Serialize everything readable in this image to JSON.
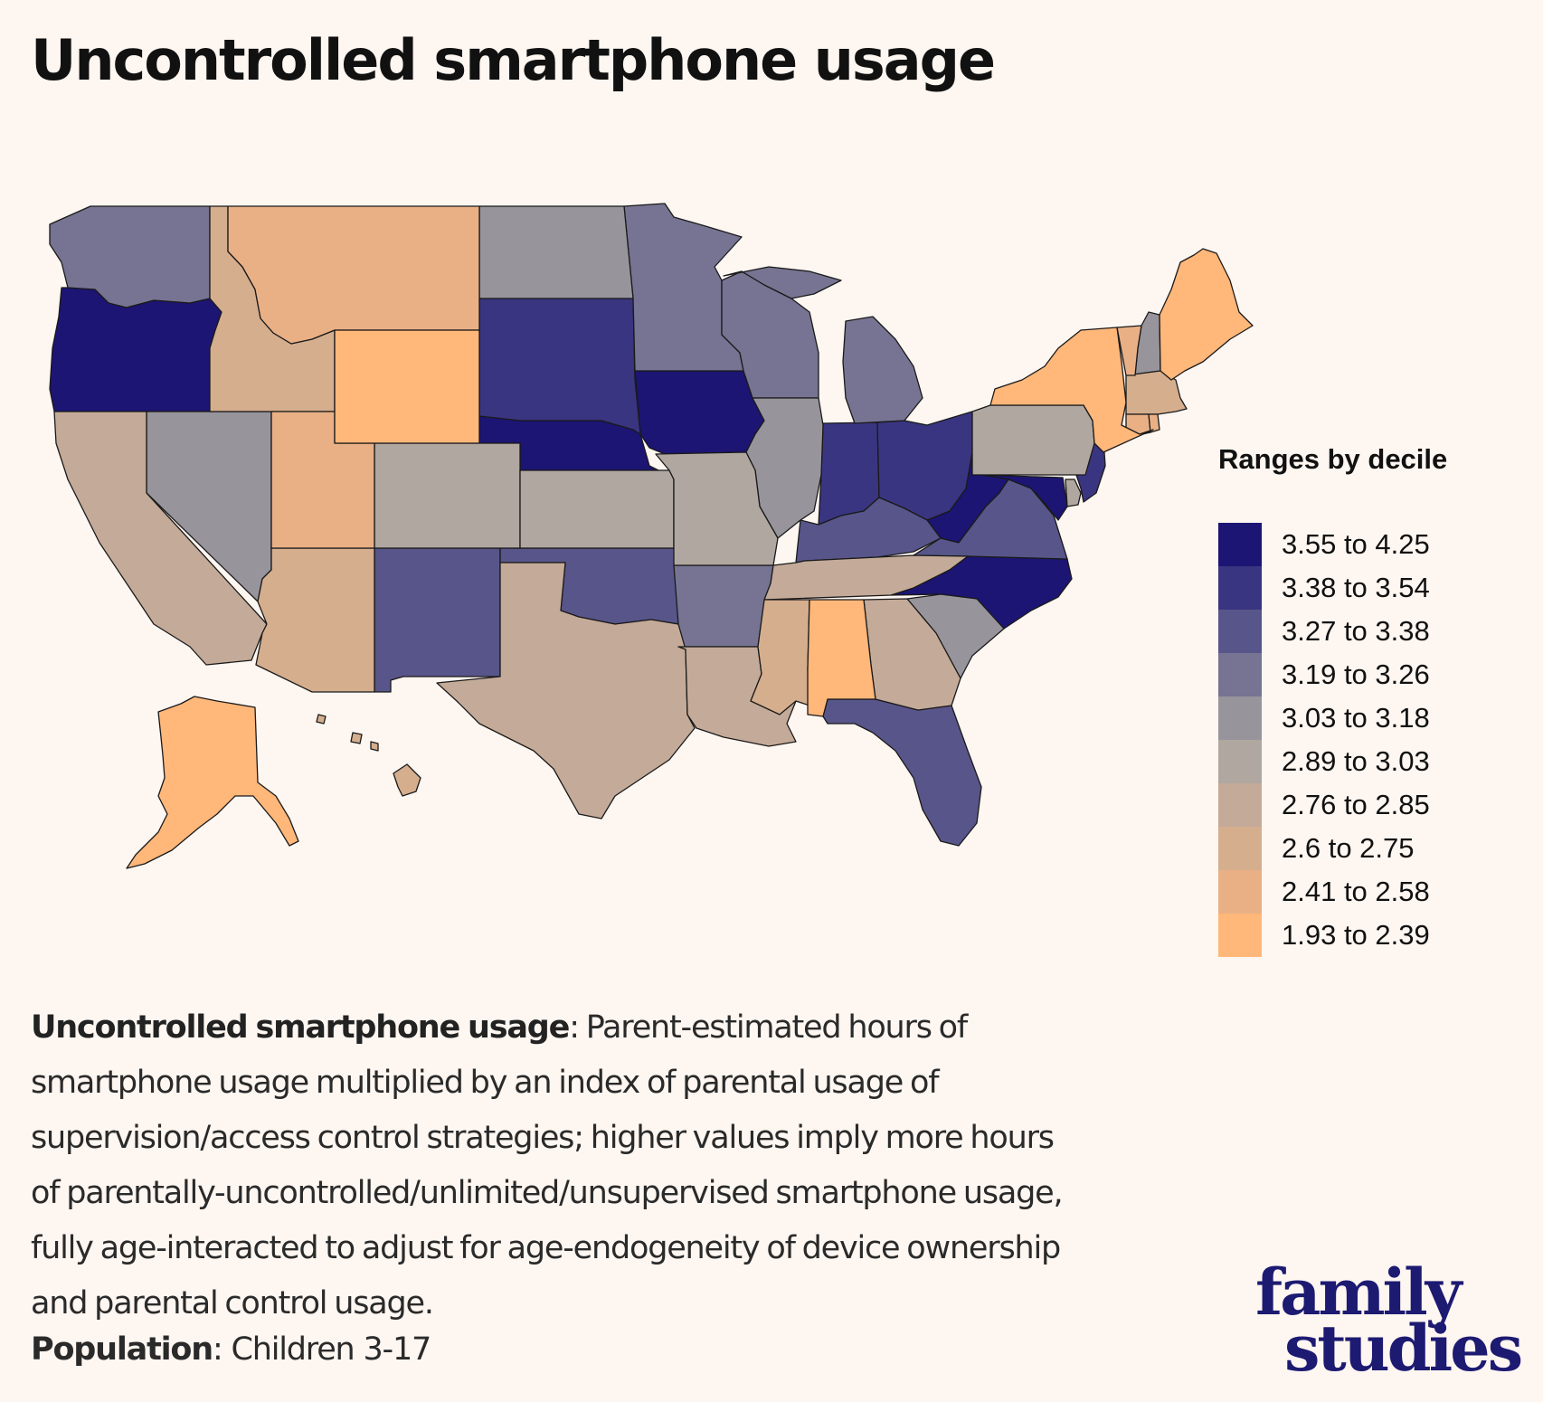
{
  "header": {
    "title": "Uncontrolled smartphone usage"
  },
  "legend": {
    "title": "Ranges by decile",
    "items": [
      {
        "label": "3.55 to 4.25",
        "color": "#1c1573"
      },
      {
        "label": "3.38 to 3.54",
        "color": "#3a3580"
      },
      {
        "label": "3.27 to 3.38",
        "color": "#58558a"
      },
      {
        "label": "3.19 to 3.26",
        "color": "#767492"
      },
      {
        "label": "3.03 to 3.18",
        "color": "#97949c"
      },
      {
        "label": "2.89 to 3.03",
        "color": "#b0a7a0"
      },
      {
        "label": "2.76 to 2.85",
        "color": "#c4aa98"
      },
      {
        "label": "2.6 to 2.75",
        "color": "#d5ae8e"
      },
      {
        "label": "2.41 to 2.58",
        "color": "#e9b086"
      },
      {
        "label": "1.93 to 2.39",
        "color": "#ffb77a"
      }
    ]
  },
  "chart_data": {
    "type": "choropleth",
    "title": "Uncontrolled smartphone usage",
    "legend_title": "Ranges by decile",
    "legend_placement": "right",
    "bins": [
      "3.55 to 4.25",
      "3.38 to 3.54",
      "3.27 to 3.38",
      "3.19 to 3.26",
      "3.03 to 3.18",
      "2.89 to 3.03",
      "2.76 to 2.85",
      "2.6 to 2.75",
      "2.41 to 2.58",
      "1.93 to 2.39"
    ],
    "states": {
      "OR": "3.55 to 4.25",
      "NE": "3.55 to 4.25",
      "IA": "3.55 to 4.25",
      "WV": "3.55 to 4.25",
      "NC": "3.55 to 4.25",
      "MD": "3.55 to 4.25",
      "SD": "3.38 to 3.54",
      "IN": "3.38 to 3.54",
      "OH": "3.38 to 3.54",
      "NJ": "3.38 to 3.54",
      "NM": "3.27 to 3.38",
      "OK": "3.27 to 3.38",
      "KY": "3.27 to 3.38",
      "VA": "3.27 to 3.38",
      "FL": "3.27 to 3.38",
      "WA": "3.19 to 3.26",
      "MN": "3.19 to 3.26",
      "WI": "3.19 to 3.26",
      "MI": "3.19 to 3.26",
      "AR": "3.19 to 3.26",
      "ND": "3.03 to 3.18",
      "NV": "3.03 to 3.18",
      "IL": "3.03 to 3.18",
      "SC": "3.03 to 3.18",
      "NH": "3.03 to 3.18",
      "CO": "2.89 to 3.03",
      "KS": "2.89 to 3.03",
      "MO": "2.89 to 3.03",
      "PA": "2.89 to 3.03",
      "DE": "2.89 to 3.03",
      "CA": "2.76 to 2.85",
      "TX": "2.76 to 2.85",
      "LA": "2.76 to 2.85",
      "TN": "2.76 to 2.85",
      "GA": "2.76 to 2.85",
      "ID": "2.6 to 2.75",
      "AZ": "2.6 to 2.75",
      "MS": "2.6 to 2.75",
      "MA": "2.6 to 2.75",
      "HI": "2.6 to 2.75",
      "MT": "2.41 to 2.58",
      "UT": "2.41 to 2.58",
      "VT": "2.41 to 2.58",
      "CT": "2.41 to 2.58",
      "RI": "2.41 to 2.58",
      "WY": "1.93 to 2.39",
      "AL": "1.93 to 2.39",
      "NY": "1.93 to 2.39",
      "ME": "1.93 to 2.39",
      "AK": "1.93 to 2.39"
    }
  },
  "description": {
    "term": "Uncontrolled smartphone usage",
    "text": ": Parent-estimated hours of smartphone usage multiplied by an index of parental usage of supervision/access control strategies; higher values imply more hours of parentally-uncontrolled/unlimited/unsupervised smartphone usage, fully age-interacted to adjust for age-endogeneity of device ownership and parental control usage."
  },
  "population": {
    "label": "Population",
    "value": ": Children 3-17"
  },
  "logo": {
    "line1": "family",
    "line2": "studies"
  }
}
